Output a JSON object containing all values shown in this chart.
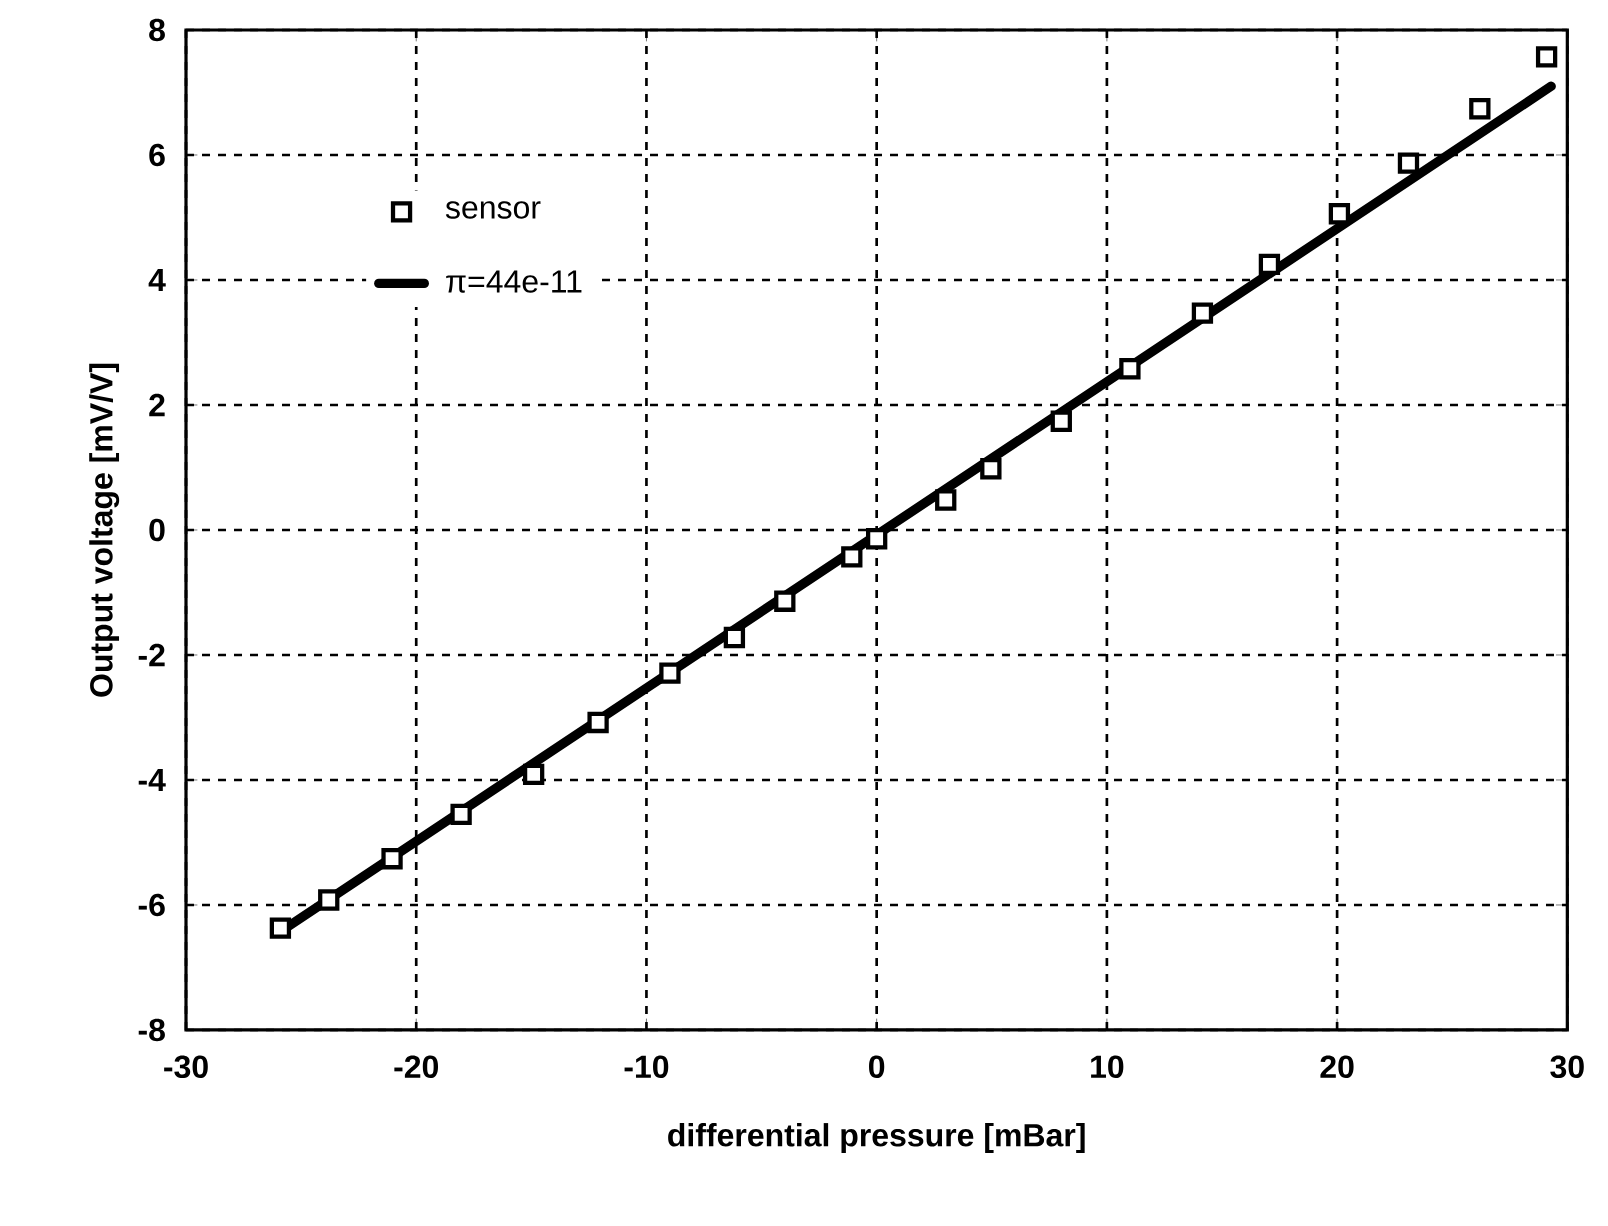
{
  "chart_data": {
    "type": "scatter",
    "xlabel": "differential pressure [mBar]",
    "ylabel": "Output voltage [mV/V]",
    "xlim": [
      -30,
      30
    ],
    "ylim": [
      -8,
      8
    ],
    "xticks": [
      -30,
      -20,
      -10,
      0,
      10,
      20,
      30
    ],
    "yticks": [
      -8,
      -6,
      -4,
      -2,
      0,
      2,
      4,
      6,
      8
    ],
    "grid": true,
    "legend": "top left",
    "series": [
      {
        "name": "sensor",
        "marker": "square",
        "color": "#000000",
        "x": [
          -25.9,
          -23.8,
          -21.05,
          -18.05,
          -14.9,
          -12.1,
          -8.98,
          -6.18,
          -3.99,
          -1.08,
          0.0,
          3.0,
          4.96,
          8.02,
          11.0,
          14.15,
          17.06,
          20.1,
          23.1,
          26.2,
          29.1
        ],
        "values": [
          -6.37,
          -5.92,
          -5.26,
          -4.55,
          -3.91,
          -3.08,
          -2.29,
          -1.72,
          -1.14,
          -0.43,
          -0.14,
          0.48,
          0.98,
          1.74,
          2.58,
          3.47,
          4.25,
          5.06,
          5.87,
          6.74,
          7.57
        ]
      },
      {
        "name": "π=44e-11",
        "type": "line",
        "marker": "none",
        "line_style": "solid",
        "color": "#000000",
        "x": [
          -26,
          29.3
        ],
        "values": [
          -6.45,
          7.1
        ]
      }
    ]
  }
}
